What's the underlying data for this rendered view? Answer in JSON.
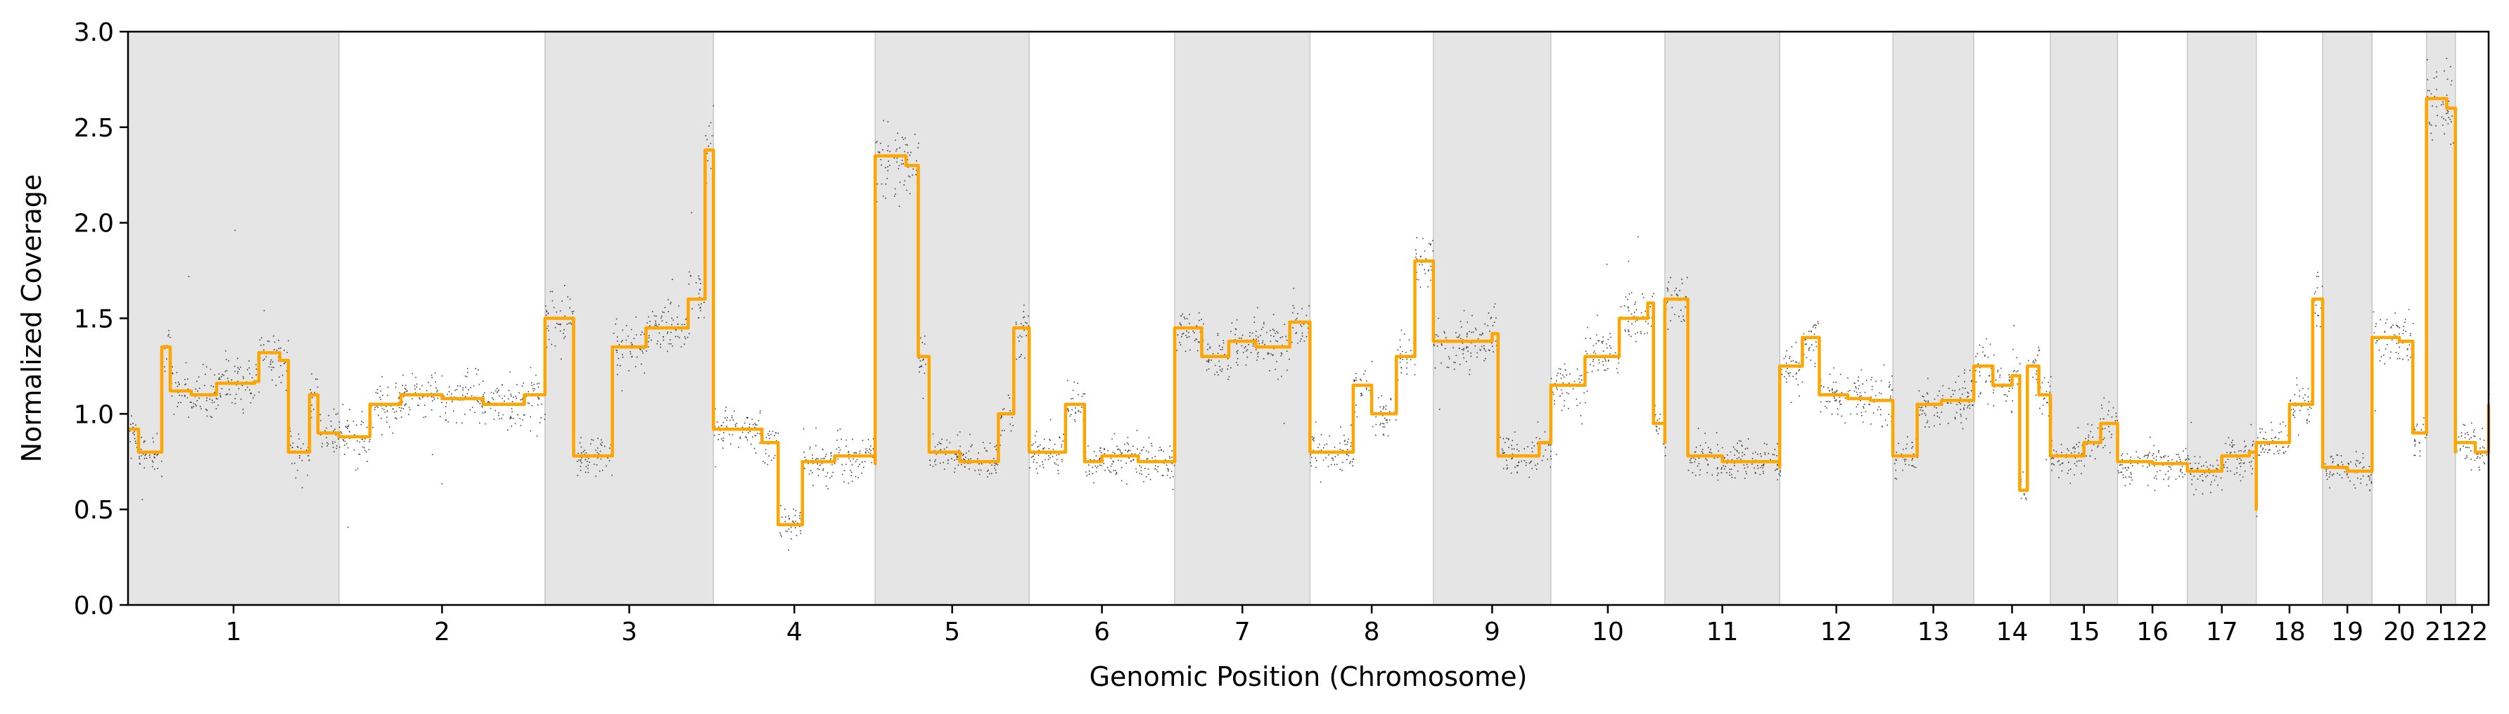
{
  "chart_data": {
    "type": "scatter",
    "title": "",
    "xlabel": "Genomic Position (Chromosome)",
    "ylabel": "Normalized Coverage",
    "ylim": [
      0.0,
      3.0
    ],
    "yticks": [
      "0.0",
      "0.5",
      "1.0",
      "1.5",
      "2.0",
      "2.5",
      "3.0"
    ],
    "grid": false,
    "legend": "none",
    "point_color": "#000000",
    "segment_color": "#FFA500",
    "band_color": "#E5E5E5",
    "chromosomes": [
      {
        "name": "1",
        "length": 248
      },
      {
        "name": "2",
        "length": 242
      },
      {
        "name": "3",
        "length": 198
      },
      {
        "name": "4",
        "length": 190
      },
      {
        "name": "5",
        "length": 181
      },
      {
        "name": "6",
        "length": 171
      },
      {
        "name": "7",
        "length": 159
      },
      {
        "name": "8",
        "length": 145
      },
      {
        "name": "9",
        "length": 138
      },
      {
        "name": "10",
        "length": 134
      },
      {
        "name": "11",
        "length": 135
      },
      {
        "name": "12",
        "length": 133
      },
      {
        "name": "13",
        "length": 95
      },
      {
        "name": "14",
        "length": 90
      },
      {
        "name": "15",
        "length": 79
      },
      {
        "name": "16",
        "length": 82
      },
      {
        "name": "17",
        "length": 81
      },
      {
        "name": "18",
        "length": 78
      },
      {
        "name": "19",
        "length": 58
      },
      {
        "name": "20",
        "length": 64
      },
      {
        "name": "21",
        "length": 34
      },
      {
        "name": "22",
        "length": 39
      }
    ],
    "series": [
      {
        "type": "segments",
        "points": [
          {
            "chrom": "1",
            "segments": [
              [
                0,
                0.92
              ],
              [
                0.05,
                0.8
              ],
              [
                0.16,
                1.35
              ],
              [
                0.2,
                1.12
              ],
              [
                0.3,
                1.1
              ],
              [
                0.42,
                1.16
              ],
              [
                0.6,
                1.17
              ],
              [
                0.62,
                1.32
              ],
              [
                0.72,
                1.28
              ],
              [
                0.76,
                0.8
              ],
              [
                0.86,
                1.1
              ],
              [
                0.9,
                0.9
              ],
              [
                1,
                0.9
              ]
            ]
          },
          {
            "chrom": "2",
            "segments": [
              [
                0,
                0.88
              ],
              [
                0.15,
                1.05
              ],
              [
                0.3,
                1.1
              ],
              [
                0.5,
                1.08
              ],
              [
                0.7,
                1.05
              ],
              [
                0.9,
                1.1
              ],
              [
                1,
                1.22
              ]
            ]
          },
          {
            "chrom": "3",
            "segments": [
              [
                0,
                1.5
              ],
              [
                0.17,
                0.78
              ],
              [
                0.4,
                1.35
              ],
              [
                0.6,
                1.45
              ],
              [
                0.85,
                1.6
              ],
              [
                0.95,
                2.38
              ],
              [
                1,
                1.1
              ]
            ]
          },
          {
            "chrom": "4",
            "segments": [
              [
                0,
                0.92
              ],
              [
                0.3,
                0.85
              ],
              [
                0.4,
                0.42
              ],
              [
                0.55,
                0.75
              ],
              [
                0.75,
                0.78
              ],
              [
                1,
                0.74
              ]
            ]
          },
          {
            "chrom": "5",
            "segments": [
              [
                0,
                2.35
              ],
              [
                0.2,
                2.3
              ],
              [
                0.28,
                1.3
              ],
              [
                0.35,
                0.8
              ],
              [
                0.55,
                0.75
              ],
              [
                0.8,
                1.0
              ],
              [
                0.9,
                1.45
              ],
              [
                1,
                0.8
              ]
            ]
          },
          {
            "chrom": "6",
            "segments": [
              [
                0,
                0.8
              ],
              [
                0.25,
                1.05
              ],
              [
                0.38,
                0.75
              ],
              [
                0.5,
                0.78
              ],
              [
                0.75,
                0.75
              ],
              [
                1,
                0.78
              ]
            ]
          },
          {
            "chrom": "7",
            "segments": [
              [
                0,
                1.45
              ],
              [
                0.2,
                1.3
              ],
              [
                0.4,
                1.38
              ],
              [
                0.6,
                1.35
              ],
              [
                0.85,
                1.48
              ],
              [
                1,
                0.8
              ]
            ]
          },
          {
            "chrom": "8",
            "segments": [
              [
                0,
                0.8
              ],
              [
                0.35,
                1.15
              ],
              [
                0.5,
                1.0
              ],
              [
                0.7,
                1.3
              ],
              [
                0.85,
                1.8
              ],
              [
                1,
                1.4
              ]
            ]
          },
          {
            "chrom": "9",
            "segments": [
              [
                0,
                1.38
              ],
              [
                0.5,
                1.42
              ],
              [
                0.55,
                0.78
              ],
              [
                0.9,
                0.85
              ],
              [
                1,
                1.1
              ]
            ]
          },
          {
            "chrom": "10",
            "segments": [
              [
                0,
                1.15
              ],
              [
                0.3,
                1.3
              ],
              [
                0.6,
                1.5
              ],
              [
                0.85,
                1.58
              ],
              [
                0.9,
                0.95
              ],
              [
                1,
                0.85
              ]
            ]
          },
          {
            "chrom": "11",
            "segments": [
              [
                0,
                1.6
              ],
              [
                0.2,
                0.78
              ],
              [
                0.5,
                0.75
              ],
              [
                0.8,
                0.75
              ],
              [
                1,
                0.72
              ]
            ]
          },
          {
            "chrom": "12",
            "segments": [
              [
                0,
                1.25
              ],
              [
                0.2,
                1.4
              ],
              [
                0.35,
                1.1
              ],
              [
                0.6,
                1.08
              ],
              [
                0.8,
                1.07
              ],
              [
                1,
                1.07
              ]
            ]
          },
          {
            "chrom": "13",
            "segments": [
              [
                0,
                0.78
              ],
              [
                0.3,
                1.05
              ],
              [
                0.6,
                1.07
              ],
              [
                1,
                1.1
              ]
            ]
          },
          {
            "chrom": "14",
            "segments": [
              [
                0,
                1.25
              ],
              [
                0.25,
                1.15
              ],
              [
                0.5,
                1.2
              ],
              [
                0.6,
                0.6
              ],
              [
                0.7,
                1.25
              ],
              [
                0.85,
                1.1
              ],
              [
                1,
                1.08
              ]
            ]
          },
          {
            "chrom": "15",
            "segments": [
              [
                0,
                0.78
              ],
              [
                0.5,
                0.85
              ],
              [
                0.75,
                0.95
              ],
              [
                1,
                0.78
              ]
            ]
          },
          {
            "chrom": "16",
            "segments": [
              [
                0,
                0.75
              ],
              [
                0.5,
                0.74
              ],
              [
                1,
                0.72
              ]
            ]
          },
          {
            "chrom": "17",
            "segments": [
              [
                0,
                0.7
              ],
              [
                0.5,
                0.78
              ],
              [
                0.9,
                0.8
              ],
              [
                1,
                0.5
              ]
            ]
          },
          {
            "chrom": "18",
            "segments": [
              [
                0,
                0.85
              ],
              [
                0.5,
                1.05
              ],
              [
                0.85,
                1.6
              ],
              [
                1,
                0.85
              ]
            ]
          },
          {
            "chrom": "19",
            "segments": [
              [
                0,
                0.72
              ],
              [
                0.5,
                0.7
              ],
              [
                1,
                0.8
              ]
            ]
          },
          {
            "chrom": "20",
            "segments": [
              [
                0,
                1.4
              ],
              [
                0.5,
                1.38
              ],
              [
                0.75,
                0.9
              ],
              [
                1,
                1.3
              ]
            ]
          },
          {
            "chrom": "21",
            "segments": [
              [
                0,
                2.65
              ],
              [
                0.7,
                2.6
              ],
              [
                1,
                0.8
              ]
            ]
          },
          {
            "chrom": "22",
            "segments": [
              [
                0,
                0.85
              ],
              [
                0.6,
                0.8
              ],
              [
                1,
                1.05
              ]
            ]
          }
        ]
      }
    ]
  }
}
